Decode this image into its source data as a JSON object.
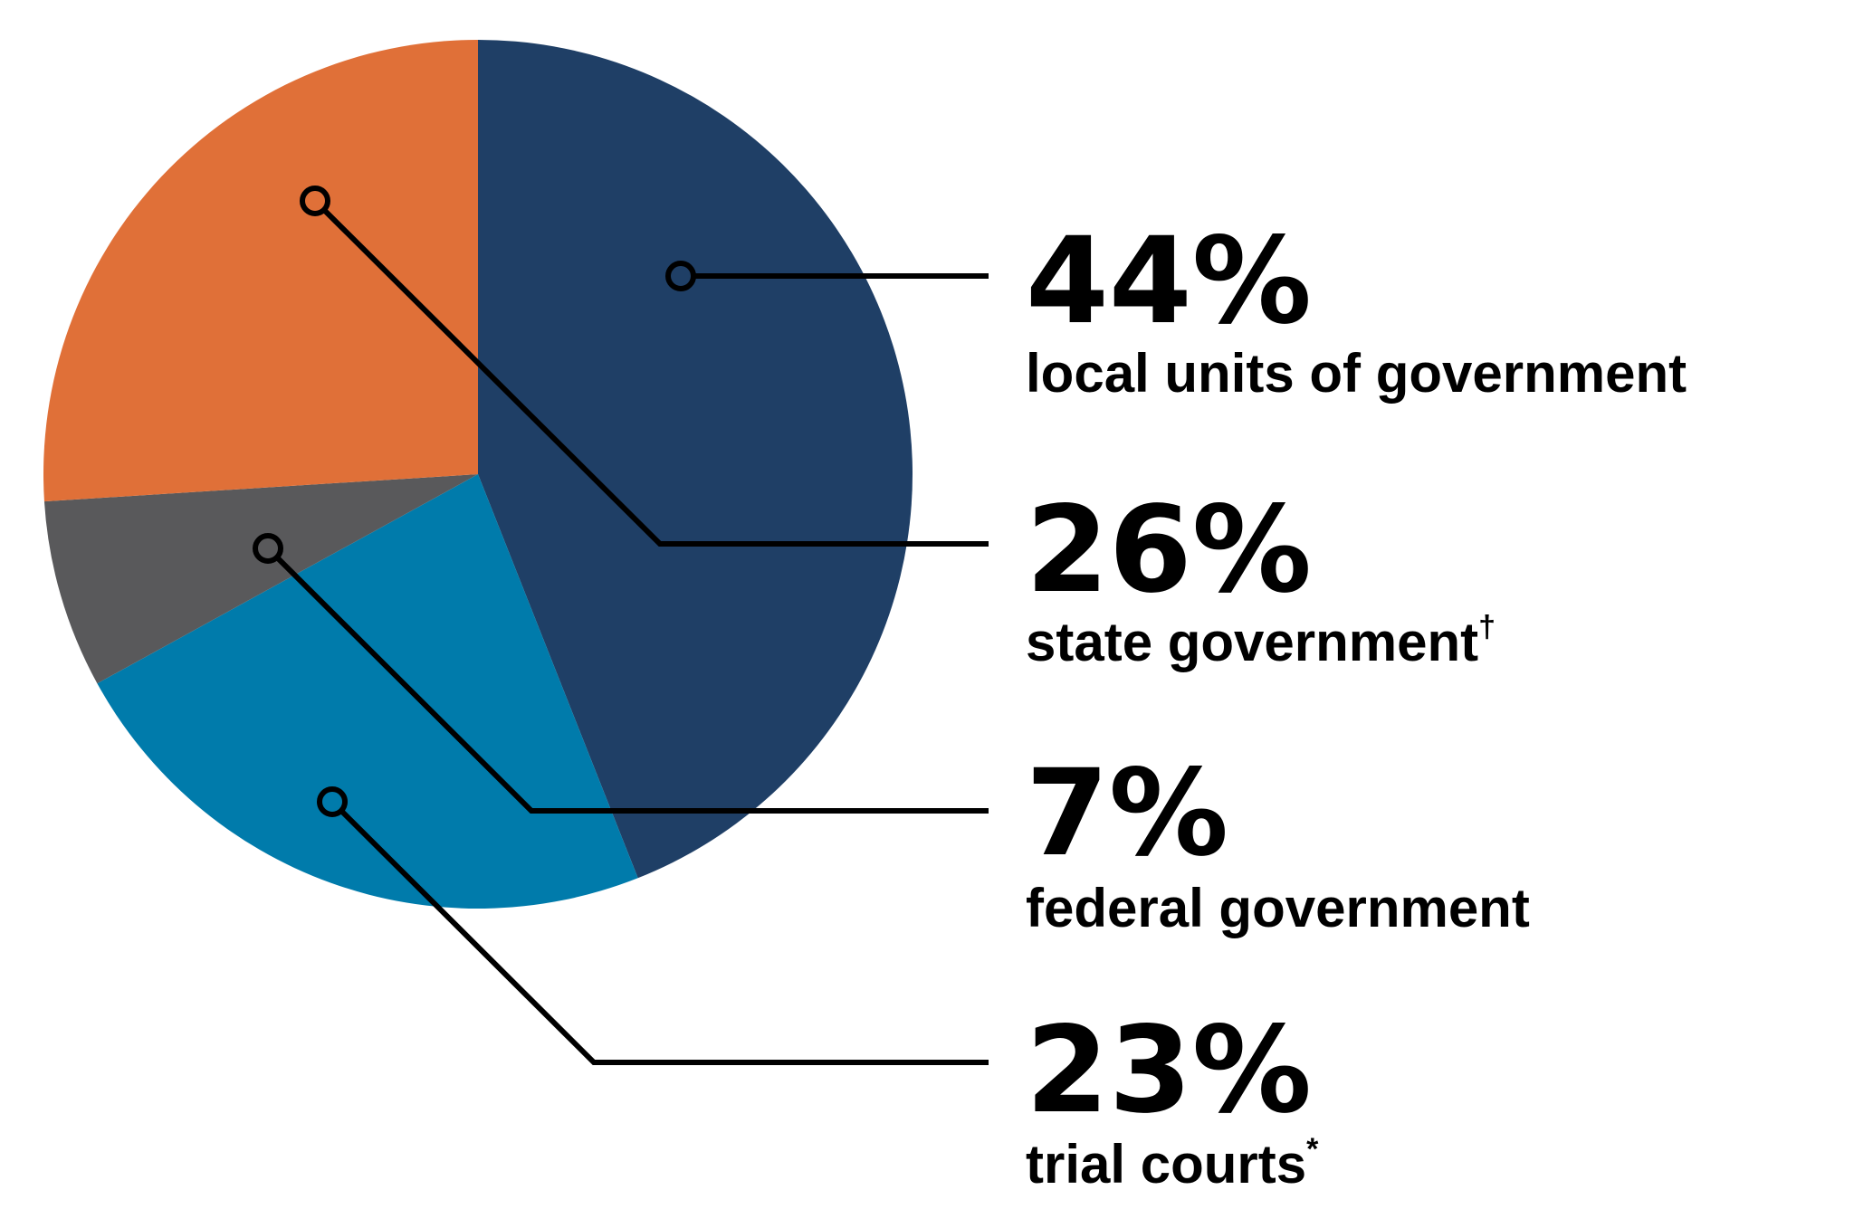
{
  "chart_data": {
    "type": "pie",
    "categories": [
      "local units of government",
      "trial courts",
      "federal government",
      "state government"
    ],
    "label_marks": [
      null,
      "*",
      null,
      "†"
    ],
    "values": [
      44,
      23,
      7,
      26
    ],
    "value_labels": [
      "44%",
      "23%",
      "7%",
      "26%"
    ],
    "colors": [
      "#1f3f66",
      "#007bab",
      "#59595b",
      "#e07038"
    ]
  }
}
